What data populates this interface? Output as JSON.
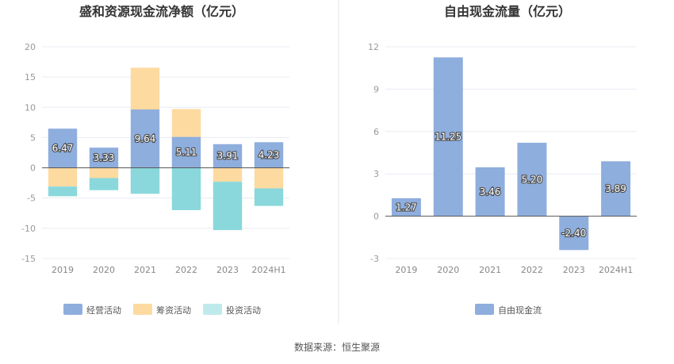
{
  "source_text": "数据来源：恒生聚源",
  "chart_data": [
    {
      "type": "bar",
      "stacked": true,
      "title": "盛和资源现金流净额（亿元）",
      "categories": [
        "2019",
        "2020",
        "2021",
        "2022",
        "2023",
        "2024H1"
      ],
      "ylim": [
        -15,
        20
      ],
      "yticks": [
        "20",
        "15",
        "10",
        "5",
        "0",
        "-5",
        "-10",
        "-15"
      ],
      "grid": true,
      "legend_position": "bottom",
      "series": [
        {
          "name": "经营活动",
          "color": "#8eaedd",
          "values": [
            6.47,
            3.33,
            9.64,
            5.11,
            3.91,
            4.23
          ],
          "labels": [
            "6.47",
            "3.33",
            "9.64",
            "5.11",
            "3.91",
            "4.23"
          ]
        },
        {
          "name": "筹资活动",
          "color": "#fddaa0",
          "values": [
            -3.1,
            -1.7,
            6.9,
            4.6,
            -2.3,
            -3.4
          ],
          "labels": []
        },
        {
          "name": "投资活动",
          "color": "#8ad8db",
          "values": [
            -1.6,
            -2.0,
            -4.3,
            -7.0,
            -8.0,
            -2.9
          ],
          "labels": []
        }
      ]
    },
    {
      "type": "bar",
      "title": "自由现金流量（亿元）",
      "categories": [
        "2019",
        "2020",
        "2021",
        "2022",
        "2023",
        "2024H1"
      ],
      "ylim": [
        -3,
        12
      ],
      "yticks": [
        "12",
        "9",
        "6",
        "3",
        "0",
        "-3"
      ],
      "grid": true,
      "legend_position": "bottom",
      "series": [
        {
          "name": "自由现金流",
          "color": "#8eaedd",
          "values": [
            1.27,
            11.25,
            3.46,
            5.2,
            -2.4,
            3.89
          ],
          "labels": [
            "1.27",
            "11.25",
            "3.46",
            "5.20",
            "-2.40",
            "3.89"
          ]
        }
      ]
    }
  ]
}
